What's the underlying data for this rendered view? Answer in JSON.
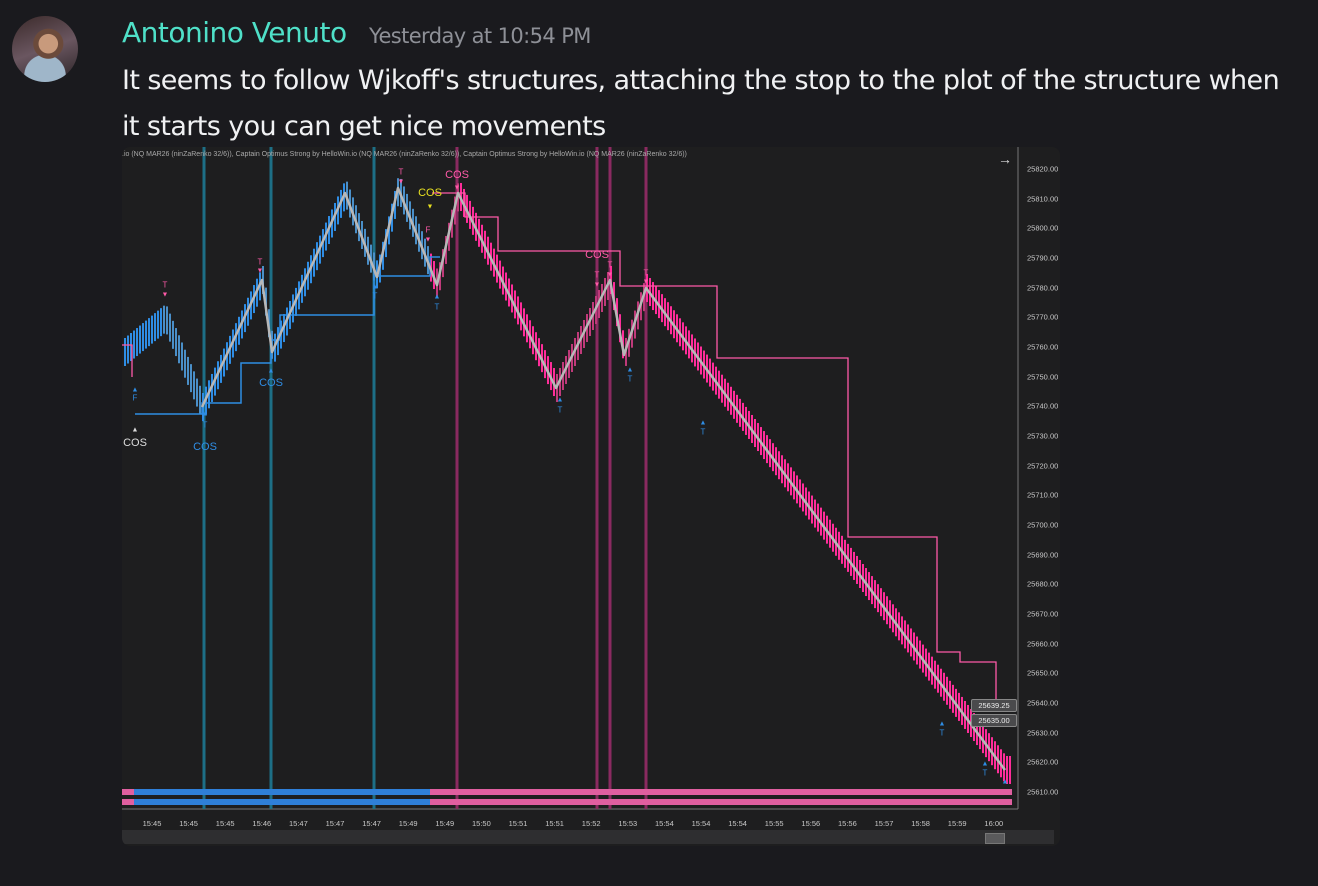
{
  "message": {
    "author": "Antonino Venuto",
    "timestamp": "Yesterday at 10:54 PM",
    "text": "It seems to follow Wjkoff's structures, attaching the stop to the plot of the structure when it starts you can get nice movements"
  },
  "chart": {
    "title": ".io (NQ MAR26 (ninZaRenko 32/6)), Captain Optimus Strong by HelloWin.io (NQ MAR26 (ninZaRenko 32/6)), Captain Optimus Strong by HelloWin.io (NQ MAR26 (ninZaRenko 32/6))",
    "y_labels": [
      "25820.00",
      "25810.00",
      "25800.00",
      "25790.00",
      "25780.00",
      "25770.00",
      "25760.00",
      "25750.00",
      "25740.00",
      "25730.00",
      "25720.00",
      "25710.00",
      "25700.00",
      "25690.00",
      "25680.00",
      "25670.00",
      "25660.00",
      "25650.00",
      "25640.00",
      "25630.00",
      "25620.00",
      "25610.00"
    ],
    "x_labels": [
      "15:45",
      "15:45",
      "15:45",
      "15:46",
      "15:47",
      "15:47",
      "15:47",
      "15:49",
      "15:49",
      "15:50",
      "15:51",
      "15:51",
      "15:52",
      "15:53",
      "15:54",
      "15:54",
      "15:54",
      "15:55",
      "15:56",
      "15:56",
      "15:57",
      "15:58",
      "15:59",
      "16:00"
    ],
    "price_tags": [
      "25639.25",
      "25635.00"
    ],
    "markers": [
      "COS",
      "F",
      "T",
      "T",
      "COS",
      "T",
      "COS",
      "T",
      "T",
      "COS",
      "F",
      "COS",
      "T",
      "COS",
      "T",
      "T",
      "T",
      "T",
      "T",
      "T",
      "T",
      "T"
    ],
    "arrow": "→",
    "colors": {
      "bull": "#2f8de4",
      "bear": "#ff2d9a",
      "zigzag": "#b8b8b8",
      "teal": "#1d6f86",
      "magenta": "#8a2a60"
    }
  }
}
